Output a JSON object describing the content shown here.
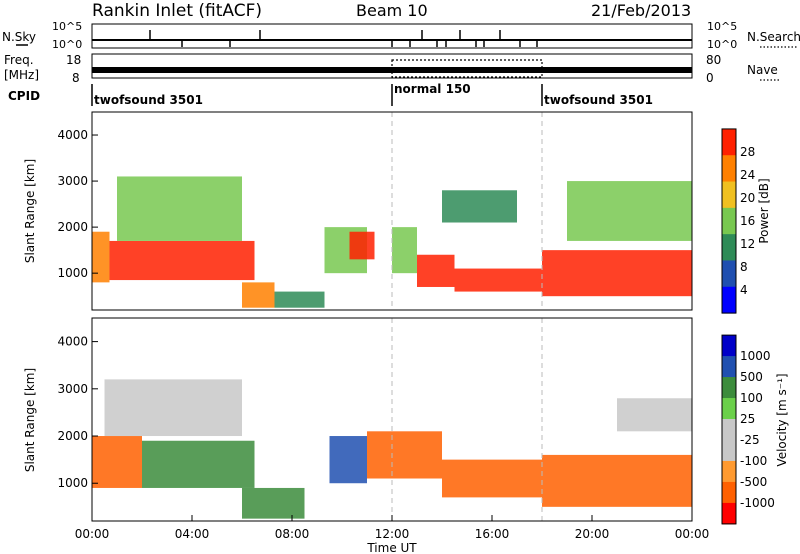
{
  "header": {
    "station": "Rankin Inlet (fitACF)",
    "beam": "Beam 10",
    "date": "21/Feb/2013"
  },
  "strip": {
    "nsky_label": "N.Sky",
    "nsky_ticks": [
      "10^5",
      "10^0"
    ],
    "nsky_right_ticks": [
      "10^5",
      "10^0"
    ],
    "nsearch_label": "N.Search",
    "freq_label": "Freq.",
    "freq_unit": "[MHz]",
    "freq_ticks": [
      "18",
      "8"
    ],
    "nave_ticks": [
      "80",
      "0"
    ],
    "nave_label": "Nave",
    "cpid_label": "CPID",
    "cpid_segments": [
      {
        "label": "twofsound 3501",
        "start_hour": 0,
        "end_hour": 12
      },
      {
        "label": "normal 150",
        "start_hour": 12,
        "end_hour": 18
      },
      {
        "label": "twofsound 3501",
        "start_hour": 18,
        "end_hour": 24
      }
    ]
  },
  "chart_data": [
    {
      "type": "heatmap",
      "quantity": "power",
      "ylabel": "Slant Range [km]",
      "ylim": [
        200,
        4500
      ],
      "yticks": [
        "1000",
        "2000",
        "3000",
        "4000"
      ],
      "xlim_hours": [
        0,
        24
      ],
      "colorbar_label": "Power [dB]",
      "colorbar_ticks": [
        "28",
        "24",
        "20",
        "16",
        "12",
        "8",
        "4"
      ],
      "colors": [
        "#0000ff",
        "#1f4fb0",
        "#2e8b57",
        "#78c850",
        "#f0c020",
        "#ff8000",
        "#ff2000"
      ],
      "bands": [
        {
          "start_hour": 0.0,
          "end_hour": 0.7,
          "low_km": 800,
          "high_km": 1900,
          "level": 5
        },
        {
          "start_hour": 0.7,
          "end_hour": 6.5,
          "low_km": 850,
          "high_km": 1700,
          "level": 6
        },
        {
          "start_hour": 1.0,
          "end_hour": 6.0,
          "low_km": 1700,
          "high_km": 3100,
          "level": 3
        },
        {
          "start_hour": 6.0,
          "end_hour": 7.3,
          "low_km": 250,
          "high_km": 800,
          "level": 5
        },
        {
          "start_hour": 7.3,
          "end_hour": 9.3,
          "low_km": 250,
          "high_km": 600,
          "level": 2
        },
        {
          "start_hour": 9.3,
          "end_hour": 11.0,
          "low_km": 1000,
          "high_km": 2000,
          "level": 3
        },
        {
          "start_hour": 10.3,
          "end_hour": 11.3,
          "low_km": 1300,
          "high_km": 1900,
          "level": 6
        },
        {
          "start_hour": 12.0,
          "end_hour": 13.0,
          "low_km": 1000,
          "high_km": 2000,
          "level": 3
        },
        {
          "start_hour": 13.0,
          "end_hour": 14.5,
          "low_km": 700,
          "high_km": 1400,
          "level": 6
        },
        {
          "start_hour": 14.5,
          "end_hour": 18.0,
          "low_km": 600,
          "high_km": 1100,
          "level": 6
        },
        {
          "start_hour": 14.0,
          "end_hour": 17.0,
          "low_km": 2100,
          "high_km": 2800,
          "level": 2
        },
        {
          "start_hour": 18.0,
          "end_hour": 24.0,
          "low_km": 500,
          "high_km": 1500,
          "level": 6
        },
        {
          "start_hour": 19.0,
          "end_hour": 24.0,
          "low_km": 1700,
          "high_km": 3000,
          "level": 3
        }
      ]
    },
    {
      "type": "heatmap",
      "quantity": "velocity",
      "ylabel": "Slant Range [km]",
      "ylim": [
        200,
        4500
      ],
      "yticks": [
        "1000",
        "2000",
        "3000",
        "4000"
      ],
      "xlabel": "Time UT",
      "xticks": [
        "00:00",
        "04:00",
        "08:00",
        "12:00",
        "16:00",
        "20:00",
        "00:00"
      ],
      "xtick_hours": [
        0,
        4,
        8,
        12,
        16,
        20,
        24
      ],
      "colorbar_label": "Velocity [m s⁻¹]",
      "colorbar_ticks": [
        "1000",
        "500",
        "100",
        "25",
        "-25",
        "-100",
        "-500",
        "-1000"
      ],
      "colors": [
        "#ff0000",
        "#ff6000",
        "#ff9a30",
        "#c8c8c8",
        "#c8c8c8",
        "#6bd04a",
        "#3c8c3c",
        "#2050b0",
        "#0000c8"
      ],
      "bands": [
        {
          "start_hour": 0.0,
          "end_hour": 2.0,
          "low_km": 900,
          "high_km": 2000,
          "level": 1
        },
        {
          "start_hour": 2.0,
          "end_hour": 6.5,
          "low_km": 900,
          "high_km": 1900,
          "level": 6
        },
        {
          "start_hour": 0.5,
          "end_hour": 6.0,
          "low_km": 2000,
          "high_km": 3200,
          "level": 3
        },
        {
          "start_hour": 6.0,
          "end_hour": 8.5,
          "low_km": 250,
          "high_km": 900,
          "level": 6
        },
        {
          "start_hour": 9.5,
          "end_hour": 11.0,
          "low_km": 1000,
          "high_km": 2000,
          "level": 7
        },
        {
          "start_hour": 11.0,
          "end_hour": 14.0,
          "low_km": 1100,
          "high_km": 2100,
          "level": 1
        },
        {
          "start_hour": 14.0,
          "end_hour": 18.0,
          "low_km": 700,
          "high_km": 1500,
          "level": 1
        },
        {
          "start_hour": 18.0,
          "end_hour": 24.0,
          "low_km": 500,
          "high_km": 1600,
          "level": 1
        },
        {
          "start_hour": 21.0,
          "end_hour": 24.0,
          "low_km": 2100,
          "high_km": 2800,
          "level": 3
        }
      ]
    }
  ]
}
